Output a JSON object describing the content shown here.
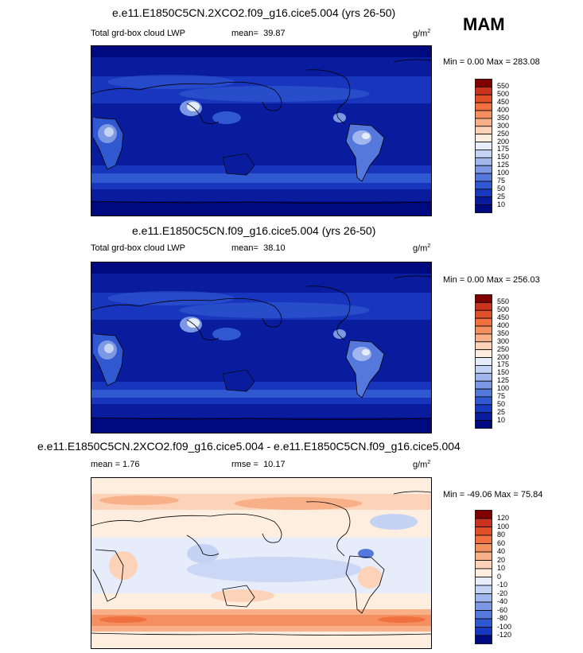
{
  "season": "MAM",
  "panels": [
    {
      "title": "e.e11.E1850C5CN.2XCO2.f09_g16.cice5.004 (yrs 26-50)",
      "left_label": "Total grd-box cloud LWP",
      "stat_label": "mean=",
      "stat_value": "39.87",
      "units_base": "g/m",
      "units_exp": "2",
      "minmax": "Min =   0.00 Max = 283.08",
      "levels": [
        "550",
        "500",
        "450",
        "400",
        "350",
        "300",
        "250",
        "200",
        "175",
        "150",
        "125",
        "100",
        "75",
        "50",
        "25",
        "10"
      ],
      "colors": [
        "#800000",
        "#c8321e",
        "#e0502a",
        "#f07040",
        "#f49060",
        "#f8b088",
        "#fcd2b8",
        "#fdeedf",
        "#e6ecfa",
        "#c4d2f4",
        "#a0b6ec",
        "#7c98e4",
        "#5478dc",
        "#3058d0",
        "#1838c0",
        "#0a1c9e",
        "#000a80"
      ]
    },
    {
      "title": "e.e11.E1850C5CN.f09_g16.cice5.004 (yrs 26-50)",
      "left_label": "Total grd-box cloud LWP",
      "stat_label": "mean=",
      "stat_value": "38.10",
      "units_base": "g/m",
      "units_exp": "2",
      "minmax": "Min =   0.00 Max = 256.03",
      "levels": [
        "550",
        "500",
        "450",
        "400",
        "350",
        "300",
        "250",
        "200",
        "175",
        "150",
        "125",
        "100",
        "75",
        "50",
        "25",
        "10"
      ],
      "colors": [
        "#800000",
        "#c8321e",
        "#e0502a",
        "#f07040",
        "#f49060",
        "#f8b088",
        "#fcd2b8",
        "#fdeedf",
        "#e6ecfa",
        "#c4d2f4",
        "#a0b6ec",
        "#7c98e4",
        "#5478dc",
        "#3058d0",
        "#1838c0",
        "#0a1c9e",
        "#000a80"
      ]
    },
    {
      "title": "e.e11.E1850C5CN.2XCO2.f09_g16.cice5.004 - e.e11.E1850C5CN.f09_g16.cice5.004",
      "left_label": "mean =   1.76",
      "stat_label": "rmse =",
      "stat_value": "10.17",
      "units_base": "g/m",
      "units_exp": "2",
      "minmax": "Min = -49.06 Max =  75.84",
      "levels": [
        "120",
        "100",
        "80",
        "60",
        "40",
        "20",
        "10",
        "0",
        "-10",
        "-20",
        "-40",
        "-60",
        "-80",
        "-100",
        "-120"
      ],
      "colors": [
        "#800000",
        "#c8321e",
        "#e0502a",
        "#f07040",
        "#f49060",
        "#f8b088",
        "#fcd2b8",
        "#fdeedf",
        "#e6ecfa",
        "#c4d2f4",
        "#a0b6ec",
        "#7c98e4",
        "#5478dc",
        "#3058d0",
        "#1838c0",
        "#000a80"
      ]
    }
  ]
}
